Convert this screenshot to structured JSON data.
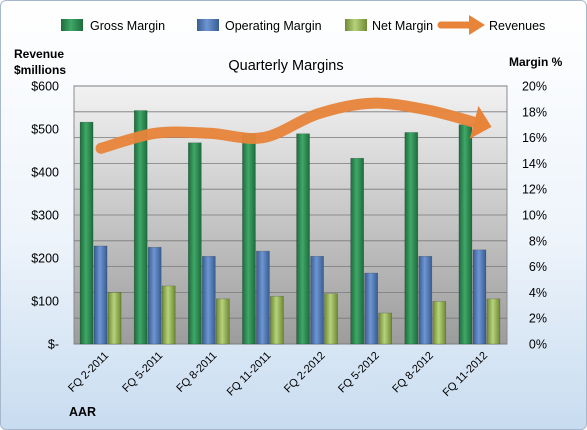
{
  "chart_data": {
    "type": "bar",
    "title": "Quarterly Margins",
    "left_axis_title": [
      "Revenue",
      "$millions"
    ],
    "right_axis_title": "Margin %",
    "footer_label": "AAR",
    "categories": [
      "FQ 2-2011",
      "FQ 5-2011",
      "FQ 8-2011",
      "FQ 11-2011",
      "FQ 2-2012",
      "FQ 5-2012",
      "FQ 8-2012",
      "FQ 11-2012"
    ],
    "y_left": {
      "min": 0,
      "max": 600,
      "step": 100,
      "tick_labels": [
        "$-",
        "$100",
        "$200",
        "$300",
        "$400",
        "$500",
        "$600"
      ]
    },
    "y_right": {
      "min": 0,
      "max": 20,
      "step": 2,
      "tick_labels": [
        "0%",
        "2%",
        "4%",
        "6%",
        "8%",
        "10%",
        "12%",
        "14%",
        "16%",
        "18%",
        "20%"
      ]
    },
    "series": [
      {
        "name": "Gross Margin",
        "axis": "right",
        "color": "#2e8b57",
        "values": [
          17.2,
          18.1,
          15.6,
          16.3,
          16.3,
          14.4,
          16.4,
          17.0
        ]
      },
      {
        "name": "Operating Margin",
        "axis": "right",
        "color": "#4f79b8",
        "values": [
          7.6,
          7.5,
          6.8,
          7.2,
          6.8,
          5.5,
          6.8,
          7.3
        ]
      },
      {
        "name": "Net Margin",
        "axis": "right",
        "color": "#9bbb59",
        "values": [
          4.0,
          4.5,
          3.5,
          3.7,
          3.9,
          2.4,
          3.3,
          3.5
        ]
      },
      {
        "name": "Revenues",
        "axis": "left",
        "color": "#e8843a",
        "type": "line",
        "values": [
          455,
          490,
          490,
          480,
          535,
          560,
          545,
          512
        ]
      }
    ],
    "grid": true,
    "legend": "top"
  }
}
